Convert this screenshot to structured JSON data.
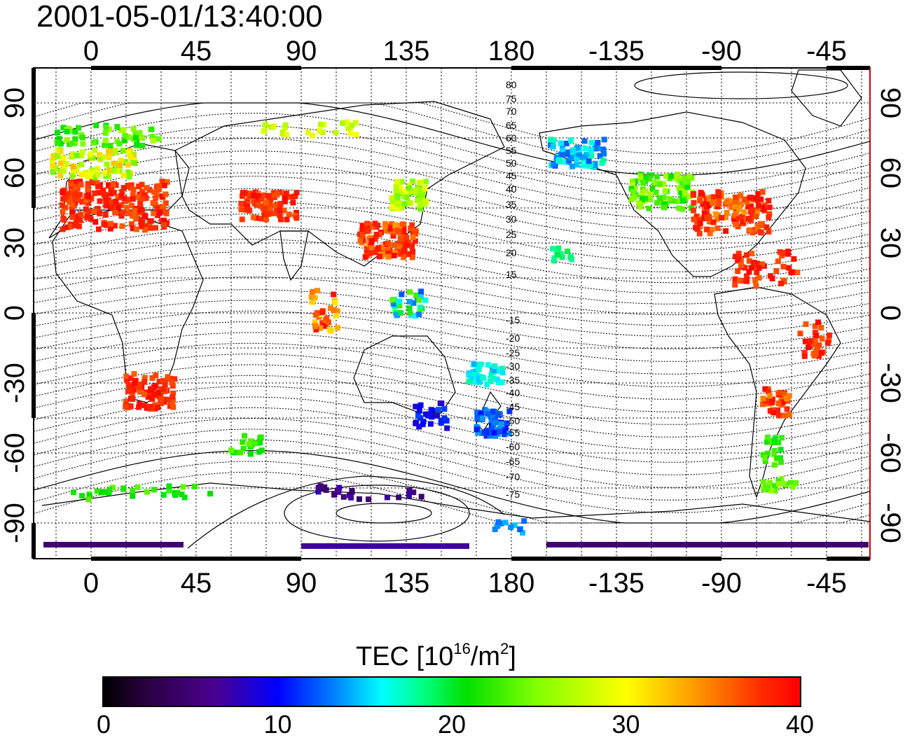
{
  "title": "2001-05-01/13:40:00",
  "map": {
    "lon_ticks_top": [
      "0",
      "45",
      "90",
      "135",
      "180",
      "-135",
      "-90",
      "-45"
    ],
    "lon_ticks_bottom": [
      "0",
      "45",
      "90",
      "135",
      "180",
      "-135",
      "-90",
      "-45"
    ],
    "lat_ticks_left": [
      "90",
      "60",
      "30",
      "0",
      "-30",
      "-60",
      "-90"
    ],
    "lat_ticks_right": [
      "90",
      "60",
      "30",
      "0",
      "-30",
      "-60",
      "-90"
    ],
    "contour_labels": [
      "80",
      "75",
      "70",
      "65",
      "60",
      "55",
      "50",
      "45",
      "40",
      "35",
      "30",
      "25",
      "20",
      "15",
      "-15",
      "-20",
      "-25",
      "-30",
      "-35",
      "-40",
      "-45",
      "-50",
      "-55",
      "-60",
      "-65",
      "-70",
      "-75"
    ]
  },
  "colorbar": {
    "title": "TEC  [10",
    "title_sup1": "16",
    "title_mid": "/m",
    "title_sup2": "2",
    "title_end": "]",
    "min": 0,
    "max": 40,
    "tick_labels": [
      "0",
      "10",
      "20",
      "30",
      "40"
    ]
  },
  "colors": {
    "scale": [
      "#000000",
      "#4a0090",
      "#0000ff",
      "#00ffff",
      "#00e000",
      "#ffff00",
      "#ff0000"
    ]
  }
}
